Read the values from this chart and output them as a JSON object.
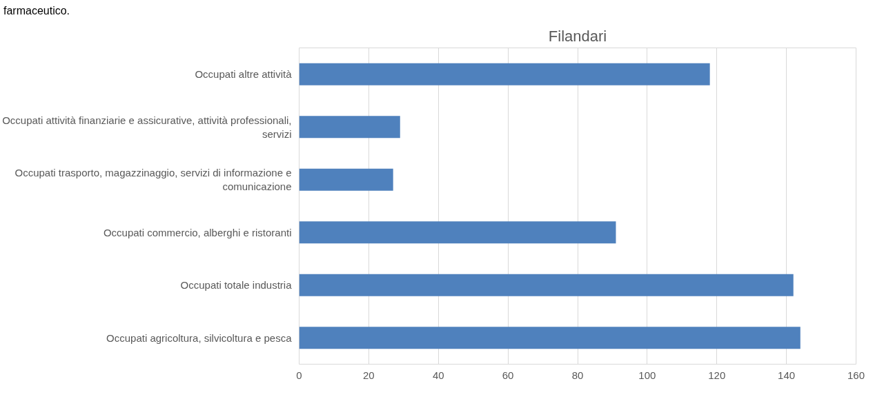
{
  "chart_data": {
    "type": "bar",
    "orientation": "horizontal",
    "title": "Filandari",
    "categories": [
      "Occupati altre attività",
      "Occupati attività finanziarie e assicurative, attività professionali, servizi",
      "Occupati trasporto, magazzinaggio, servizi di informazione e comunicazione",
      "Occupati commercio, alberghi e ristoranti",
      "Occupati totale industria",
      "Occupati agricoltura, silvicoltura e pesca"
    ],
    "values": [
      118,
      29,
      27,
      91,
      142,
      144
    ],
    "color": "#4f81bd",
    "xlim": [
      0,
      160
    ],
    "xticks": [
      0,
      20,
      40,
      60,
      80,
      100,
      120,
      140,
      160
    ],
    "grid": "x",
    "annotations": [
      "farmaceutico."
    ]
  }
}
